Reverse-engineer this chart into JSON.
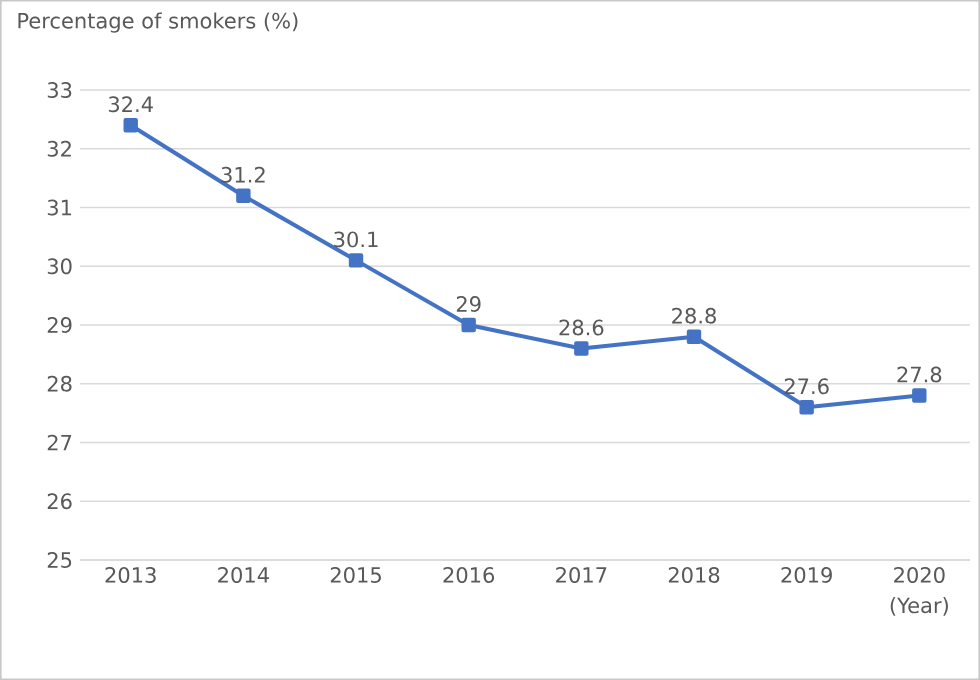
{
  "chart_data": {
    "type": "line",
    "title": "Percentage of smokers (%)",
    "xlabel": "(Year)",
    "categories": [
      "2013",
      "2014",
      "2015",
      "2016",
      "2017",
      "2018",
      "2019",
      "2020"
    ],
    "values": [
      32.4,
      31.2,
      30.1,
      29,
      28.6,
      28.8,
      27.6,
      27.8
    ],
    "color": "#4472c4",
    "marker": "square",
    "line_style": "solid",
    "data_labels": true,
    "grid": "y",
    "ylim": [
      25,
      33
    ],
    "yticks": [
      25,
      26,
      27,
      28,
      29,
      30,
      31,
      32,
      33
    ]
  }
}
